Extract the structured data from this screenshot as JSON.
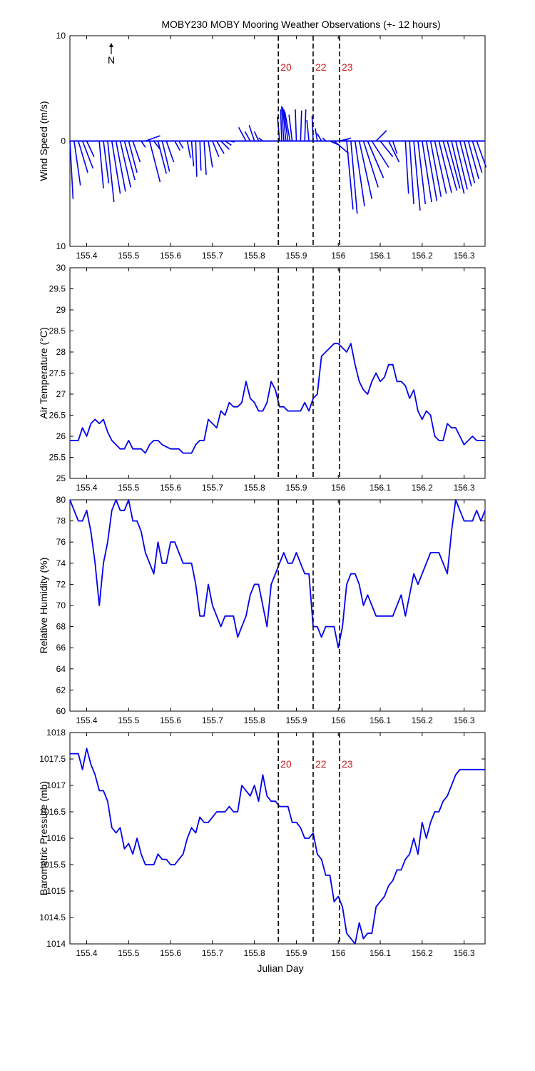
{
  "title": "MOBY230 MOBY Mooring Weather Observations (+- 12 hours)",
  "xlabel": "Julian Day",
  "north_label": "N",
  "colors": {
    "series": "#0000ee",
    "marker_text": "#cc2222",
    "axis": "#000000"
  },
  "x_ticks": [
    "155.4",
    "155.5",
    "155.6",
    "155.7",
    "155.8",
    "155.9",
    "156",
    "156.1",
    "156.2",
    "156.3"
  ],
  "x_range": [
    155.36,
    156.35
  ],
  "markers": [
    {
      "x": 155.857,
      "label": "20"
    },
    {
      "x": 155.94,
      "label": "22"
    },
    {
      "x": 156.003,
      "label": "23"
    }
  ],
  "chart_data": [
    {
      "type": "quiver",
      "ylabel": "Wind Speed (m/s)",
      "ylim": [
        -10,
        10
      ],
      "y_tick_labels": [
        "10",
        "0",
        "10"
      ],
      "vectors": [
        {
          "x": 155.36,
          "u": 0.3,
          "v": -5.5
        },
        {
          "x": 155.37,
          "u": 0.6,
          "v": -4.2
        },
        {
          "x": 155.38,
          "u": 0.9,
          "v": -3.0
        },
        {
          "x": 155.39,
          "u": 1.0,
          "v": -2.6
        },
        {
          "x": 155.4,
          "u": 0.7,
          "v": -1.5
        },
        {
          "x": 155.43,
          "u": 0.4,
          "v": -4.5
        },
        {
          "x": 155.44,
          "u": 0.5,
          "v": -4.0
        },
        {
          "x": 155.45,
          "u": 0.6,
          "v": -5.8
        },
        {
          "x": 155.46,
          "u": 0.8,
          "v": -5.0
        },
        {
          "x": 155.47,
          "u": 0.9,
          "v": -4.8
        },
        {
          "x": 155.48,
          "u": 1.0,
          "v": -4.4
        },
        {
          "x": 155.49,
          "u": 1.0,
          "v": -3.7
        },
        {
          "x": 155.5,
          "u": 0.8,
          "v": -3.0
        },
        {
          "x": 155.51,
          "u": 0.7,
          "v": -2.0
        },
        {
          "x": 155.53,
          "u": 0.4,
          "v": -0.6
        },
        {
          "x": 155.54,
          "u": 1.4,
          "v": 0.5
        },
        {
          "x": 155.55,
          "u": 1.0,
          "v": -3.9
        },
        {
          "x": 155.56,
          "u": 0.6,
          "v": -0.8
        },
        {
          "x": 155.57,
          "u": 0.8,
          "v": -3.1
        },
        {
          "x": 155.58,
          "u": 0.7,
          "v": -2.9
        },
        {
          "x": 155.59,
          "u": 0.7,
          "v": -2.0
        },
        {
          "x": 155.61,
          "u": 0.5,
          "v": -0.9
        },
        {
          "x": 155.62,
          "u": 0.4,
          "v": -0.7
        },
        {
          "x": 155.64,
          "u": 0.3,
          "v": -1.6
        },
        {
          "x": 155.65,
          "u": 0.2,
          "v": -2.4
        },
        {
          "x": 155.66,
          "u": 0.1,
          "v": -3.4
        },
        {
          "x": 155.67,
          "u": 0.1,
          "v": -2.8
        },
        {
          "x": 155.68,
          "u": 0.2,
          "v": -3.2
        },
        {
          "x": 155.69,
          "u": 0.4,
          "v": -2.5
        },
        {
          "x": 155.7,
          "u": 0.6,
          "v": -1.5
        },
        {
          "x": 155.71,
          "u": 0.7,
          "v": -1.2
        },
        {
          "x": 155.72,
          "u": 0.8,
          "v": -0.8
        },
        {
          "x": 155.73,
          "u": 0.6,
          "v": -0.4
        },
        {
          "x": 155.74,
          "u": 0.5,
          "v": -0.1
        },
        {
          "x": 155.78,
          "u": -0.7,
          "v": 1.3
        },
        {
          "x": 155.79,
          "u": -0.5,
          "v": 0.9
        },
        {
          "x": 155.8,
          "u": -0.5,
          "v": 1.5
        },
        {
          "x": 155.81,
          "u": -0.4,
          "v": 0.9
        },
        {
          "x": 155.82,
          "u": -0.4,
          "v": 0.3
        },
        {
          "x": 155.86,
          "u": -0.2,
          "v": 2.3
        },
        {
          "x": 155.865,
          "u": -0.1,
          "v": 3.0
        },
        {
          "x": 155.87,
          "u": -0.2,
          "v": 3.3
        },
        {
          "x": 155.875,
          "u": -0.3,
          "v": 3.2
        },
        {
          "x": 155.88,
          "u": -0.4,
          "v": 3.0
        },
        {
          "x": 155.885,
          "u": -0.5,
          "v": 2.8
        },
        {
          "x": 155.89,
          "u": -0.3,
          "v": 2.5
        },
        {
          "x": 155.9,
          "u": -0.1,
          "v": 3.0
        },
        {
          "x": 155.91,
          "u": 0.1,
          "v": 2.9
        },
        {
          "x": 155.92,
          "u": 0.1,
          "v": 3.0
        },
        {
          "x": 155.93,
          "u": -0.2,
          "v": 2.0
        },
        {
          "x": 155.94,
          "u": -0.1,
          "v": 2.4
        },
        {
          "x": 155.95,
          "u": -0.2,
          "v": 1.2
        },
        {
          "x": 155.96,
          "u": -0.4,
          "v": 0.7
        },
        {
          "x": 155.97,
          "u": -0.3,
          "v": 0.3
        },
        {
          "x": 155.98,
          "u": 0.9,
          "v": -0.4
        },
        {
          "x": 155.99,
          "u": 1.4,
          "v": -1.2
        },
        {
          "x": 156.0,
          "u": 1.0,
          "v": 0.2
        },
        {
          "x": 156.01,
          "u": 0.8,
          "v": 0.3
        },
        {
          "x": 156.02,
          "u": 0.6,
          "v": -6.5
        },
        {
          "x": 156.03,
          "u": 0.6,
          "v": -6.9
        },
        {
          "x": 156.04,
          "u": 0.9,
          "v": -6.2
        },
        {
          "x": 156.05,
          "u": 1.2,
          "v": -5.5
        },
        {
          "x": 156.06,
          "u": 1.4,
          "v": -4.4
        },
        {
          "x": 156.07,
          "u": 1.5,
          "v": -3.5
        },
        {
          "x": 156.08,
          "u": 1.6,
          "v": -2.5
        },
        {
          "x": 156.09,
          "u": 1.0,
          "v": 1.0
        },
        {
          "x": 156.1,
          "u": 1.2,
          "v": -1.5
        },
        {
          "x": 156.12,
          "u": 1.0,
          "v": -2.0
        },
        {
          "x": 156.13,
          "u": 0.4,
          "v": -1.2
        },
        {
          "x": 156.16,
          "u": 0.3,
          "v": -5.0
        },
        {
          "x": 156.17,
          "u": 0.4,
          "v": -6.0
        },
        {
          "x": 156.18,
          "u": 0.6,
          "v": -6.6
        },
        {
          "x": 156.19,
          "u": 0.7,
          "v": -6.0
        },
        {
          "x": 156.2,
          "u": 0.9,
          "v": -5.8
        },
        {
          "x": 156.21,
          "u": 1.0,
          "v": -5.7
        },
        {
          "x": 156.22,
          "u": 1.0,
          "v": -5.3
        },
        {
          "x": 156.23,
          "u": 1.1,
          "v": -5.0
        },
        {
          "x": 156.24,
          "u": 1.2,
          "v": -4.9
        },
        {
          "x": 156.25,
          "u": 1.3,
          "v": -4.7
        },
        {
          "x": 156.26,
          "u": 1.2,
          "v": -4.5
        },
        {
          "x": 156.27,
          "u": 1.2,
          "v": -5.0
        },
        {
          "x": 156.28,
          "u": 1.1,
          "v": -4.6
        },
        {
          "x": 156.29,
          "u": 1.1,
          "v": -4.3
        },
        {
          "x": 156.3,
          "u": 1.0,
          "v": -4.0
        },
        {
          "x": 156.31,
          "u": 1.0,
          "v": -3.6
        },
        {
          "x": 156.32,
          "u": 0.9,
          "v": -3.0
        },
        {
          "x": 156.33,
          "u": 0.9,
          "v": -2.5
        }
      ]
    },
    {
      "type": "line",
      "ylabel": "Air Temperature (°C)",
      "ylim": [
        25,
        30
      ],
      "y_tick_labels": [
        "25",
        "25.5",
        "26",
        "26.5",
        "27",
        "27.5",
        "28",
        "28.5",
        "29",
        "29.5",
        "30"
      ],
      "x": [
        155.36,
        155.38,
        155.39,
        155.4,
        155.41,
        155.42,
        155.43,
        155.44,
        155.45,
        155.46,
        155.48,
        155.49,
        155.5,
        155.51,
        155.53,
        155.54,
        155.55,
        155.56,
        155.57,
        155.58,
        155.6,
        155.61,
        155.62,
        155.63,
        155.64,
        155.65,
        155.66,
        155.67,
        155.68,
        155.69,
        155.7,
        155.71,
        155.72,
        155.73,
        155.74,
        155.75,
        155.76,
        155.77,
        155.78,
        155.79,
        155.8,
        155.81,
        155.82,
        155.83,
        155.84,
        155.85,
        155.86,
        155.87,
        155.88,
        155.89,
        155.9,
        155.91,
        155.92,
        155.93,
        155.94,
        155.95,
        155.96,
        155.97,
        155.98,
        155.99,
        156.0,
        156.01,
        156.02,
        156.03,
        156.04,
        156.05,
        156.06,
        156.07,
        156.08,
        156.09,
        156.1,
        156.11,
        156.12,
        156.13,
        156.14,
        156.15,
        156.16,
        156.17,
        156.18,
        156.19,
        156.2,
        156.21,
        156.22,
        156.23,
        156.24,
        156.25,
        156.26,
        156.27,
        156.28,
        156.29,
        156.3,
        156.31,
        156.32,
        156.33,
        156.34,
        156.35
      ],
      "series": [
        {
          "values": [
            25.9,
            25.9,
            26.2,
            26.0,
            26.3,
            26.4,
            26.3,
            26.4,
            26.1,
            25.9,
            25.7,
            25.7,
            25.9,
            25.7,
            25.7,
            25.6,
            25.8,
            25.9,
            25.9,
            25.8,
            25.7,
            25.7,
            25.7,
            25.6,
            25.6,
            25.6,
            25.8,
            25.9,
            25.9,
            26.4,
            26.3,
            26.2,
            26.6,
            26.5,
            26.8,
            26.7,
            26.7,
            26.8,
            27.3,
            26.9,
            26.8,
            26.6,
            26.6,
            26.8,
            27.3,
            27.1,
            26.7,
            26.7,
            26.6,
            26.6,
            26.6,
            26.6,
            26.8,
            26.6,
            26.9,
            27.0,
            27.9,
            28.0,
            28.1,
            28.2,
            28.2,
            28.1,
            28.0,
            28.2,
            27.7,
            27.3,
            27.1,
            27.0,
            27.3,
            27.5,
            27.3,
            27.4,
            27.7,
            27.7,
            27.3,
            27.3,
            27.2,
            26.9,
            27.1,
            26.6,
            26.4,
            26.6,
            26.5,
            26.0,
            25.9,
            25.9,
            26.3,
            26.2,
            26.2,
            26.0,
            25.8,
            25.9,
            26.0,
            25.9,
            25.9,
            25.9
          ]
        }
      ]
    },
    {
      "type": "line",
      "ylabel": "Relative Humidity (%)",
      "ylim": [
        60,
        80
      ],
      "y_tick_labels": [
        "60",
        "62",
        "64",
        "66",
        "68",
        "70",
        "72",
        "74",
        "76",
        "78",
        "80"
      ],
      "x": [
        155.36,
        155.37,
        155.38,
        155.39,
        155.4,
        155.41,
        155.42,
        155.43,
        155.44,
        155.45,
        155.46,
        155.47,
        155.48,
        155.49,
        155.5,
        155.51,
        155.52,
        155.53,
        155.54,
        155.55,
        155.56,
        155.57,
        155.58,
        155.59,
        155.6,
        155.61,
        155.62,
        155.63,
        155.64,
        155.65,
        155.66,
        155.67,
        155.68,
        155.69,
        155.7,
        155.71,
        155.72,
        155.73,
        155.74,
        155.75,
        155.76,
        155.77,
        155.78,
        155.79,
        155.8,
        155.81,
        155.82,
        155.83,
        155.84,
        155.85,
        155.86,
        155.87,
        155.88,
        155.89,
        155.9,
        155.91,
        155.92,
        155.93,
        155.94,
        155.95,
        155.96,
        155.97,
        155.98,
        155.99,
        156.0,
        156.01,
        156.02,
        156.03,
        156.04,
        156.05,
        156.06,
        156.07,
        156.08,
        156.09,
        156.1,
        156.11,
        156.12,
        156.13,
        156.14,
        156.15,
        156.16,
        156.17,
        156.18,
        156.19,
        156.2,
        156.21,
        156.22,
        156.23,
        156.24,
        156.25,
        156.26,
        156.27,
        156.28,
        156.29,
        156.3,
        156.31,
        156.32,
        156.33,
        156.34,
        156.35
      ],
      "series": [
        {
          "values": [
            80,
            79,
            78,
            78,
            79,
            77,
            74,
            70,
            74,
            76,
            79,
            80,
            79,
            79,
            80,
            78,
            78,
            77,
            75,
            74,
            73,
            76,
            74,
            74,
            76,
            76,
            75,
            74,
            74,
            74,
            72,
            69,
            69,
            72,
            70,
            69,
            68,
            69,
            69,
            69,
            67,
            68,
            69,
            71,
            72,
            72,
            70,
            68,
            72,
            73,
            74,
            75,
            74,
            74,
            75,
            74,
            73,
            73,
            68,
            68,
            67,
            68,
            68,
            68,
            66,
            68,
            72,
            73,
            73,
            72,
            70,
            71,
            70,
            69,
            69,
            69,
            69,
            69,
            70,
            71,
            69,
            71,
            73,
            72,
            73,
            74,
            75,
            75,
            75,
            74,
            73,
            77,
            80,
            79,
            78,
            78,
            78,
            79,
            78,
            79
          ]
        }
      ]
    },
    {
      "type": "line",
      "ylabel": "Barometric Pressure (mb)",
      "xlabel": "Julian Day",
      "ylim": [
        1014,
        1018
      ],
      "y_tick_labels": [
        "1014",
        "1014.5",
        "1015",
        "1015.5",
        "1016",
        "1016.5",
        "1017",
        "1017.5",
        "1018"
      ],
      "x": [
        155.36,
        155.37,
        155.38,
        155.39,
        155.4,
        155.41,
        155.42,
        155.43,
        155.44,
        155.45,
        155.46,
        155.47,
        155.48,
        155.49,
        155.5,
        155.51,
        155.52,
        155.53,
        155.54,
        155.55,
        155.56,
        155.57,
        155.58,
        155.59,
        155.6,
        155.61,
        155.62,
        155.63,
        155.64,
        155.65,
        155.66,
        155.67,
        155.68,
        155.69,
        155.7,
        155.71,
        155.72,
        155.73,
        155.74,
        155.75,
        155.76,
        155.77,
        155.78,
        155.79,
        155.8,
        155.81,
        155.82,
        155.83,
        155.84,
        155.85,
        155.86,
        155.87,
        155.88,
        155.89,
        155.9,
        155.91,
        155.92,
        155.93,
        155.94,
        155.95,
        155.96,
        155.97,
        155.98,
        155.99,
        156.0,
        156.01,
        156.02,
        156.03,
        156.04,
        156.05,
        156.06,
        156.07,
        156.08,
        156.09,
        156.1,
        156.11,
        156.12,
        156.13,
        156.14,
        156.15,
        156.16,
        156.17,
        156.18,
        156.19,
        156.2,
        156.21,
        156.22,
        156.23,
        156.24,
        156.25,
        156.26,
        156.27,
        156.28,
        156.29,
        156.3,
        156.31,
        156.32,
        156.33,
        156.34,
        156.35
      ],
      "series": [
        {
          "values": [
            1017.6,
            1017.6,
            1017.6,
            1017.3,
            1017.7,
            1017.4,
            1017.2,
            1016.9,
            1016.9,
            1016.7,
            1016.2,
            1016.1,
            1016.2,
            1015.8,
            1015.9,
            1015.7,
            1016.0,
            1015.7,
            1015.5,
            1015.5,
            1015.5,
            1015.7,
            1015.6,
            1015.6,
            1015.5,
            1015.5,
            1015.6,
            1015.7,
            1016.0,
            1016.2,
            1016.1,
            1016.4,
            1016.3,
            1016.3,
            1016.4,
            1016.5,
            1016.5,
            1016.5,
            1016.6,
            1016.5,
            1016.5,
            1017.0,
            1016.9,
            1016.8,
            1017.0,
            1016.7,
            1017.2,
            1016.8,
            1016.7,
            1016.7,
            1016.6,
            1016.6,
            1016.6,
            1016.3,
            1016.3,
            1016.2,
            1016.0,
            1016.0,
            1016.1,
            1015.7,
            1015.6,
            1015.3,
            1015.3,
            1014.8,
            1014.9,
            1014.7,
            1014.2,
            1014.1,
            1014.0,
            1014.4,
            1014.1,
            1014.2,
            1014.2,
            1014.7,
            1014.8,
            1014.9,
            1015.1,
            1015.2,
            1015.4,
            1015.4,
            1015.6,
            1015.7,
            1016.0,
            1015.7,
            1016.3,
            1016.0,
            1016.3,
            1016.5,
            1016.5,
            1016.7,
            1016.8,
            1017.0,
            1017.2,
            1017.3,
            1017.3,
            1017.3,
            1017.3,
            1017.3,
            1017.3,
            1017.3
          ]
        }
      ]
    }
  ]
}
